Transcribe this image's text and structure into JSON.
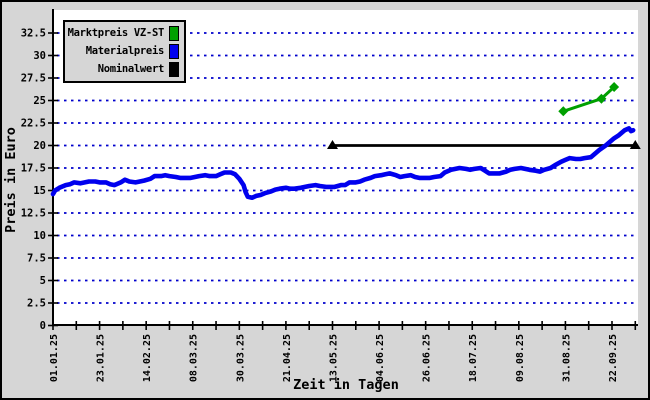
{
  "window": {
    "background": "#d6d6d6",
    "border_color": "#000000"
  },
  "chart_data": {
    "type": "line",
    "title": "",
    "xlabel": "Zeit in Tagen",
    "ylabel": "Preis in Euro",
    "plot_background": "#ffffff",
    "grid_color": "#0000cc",
    "axis_color": "#000000",
    "grid": "horizontal-dotted",
    "legend_position": "top-left",
    "ylim": [
      0,
      35
    ],
    "y_ticks": [
      {
        "v": 0,
        "label": "0"
      },
      {
        "v": 2.5,
        "label": "2.5"
      },
      {
        "v": 5,
        "label": "5"
      },
      {
        "v": 7.5,
        "label": "7.5"
      },
      {
        "v": 10,
        "label": "10"
      },
      {
        "v": 12.5,
        "label": "12.5"
      },
      {
        "v": 15,
        "label": "15"
      },
      {
        "v": 17.5,
        "label": "17.5"
      },
      {
        "v": 20,
        "label": "20"
      },
      {
        "v": 22.5,
        "label": "22.5"
      },
      {
        "v": 25,
        "label": "25"
      },
      {
        "v": 27.5,
        "label": "27.5"
      },
      {
        "v": 30,
        "label": "30"
      },
      {
        "v": 32.5,
        "label": "32.5"
      }
    ],
    "x_axis": {
      "unit": "days",
      "major_ticks": [
        {
          "day": 0,
          "label": "01.01.25"
        },
        {
          "day": 22,
          "label": "23.01.25"
        },
        {
          "day": 44,
          "label": "14.02.25"
        },
        {
          "day": 66,
          "label": "08.03.25"
        },
        {
          "day": 88,
          "label": "30.03.25"
        },
        {
          "day": 110,
          "label": "21.04.25"
        },
        {
          "day": 132,
          "label": "13.05.25"
        },
        {
          "day": 154,
          "label": "04.06.25"
        },
        {
          "day": 176,
          "label": "26.06.25"
        },
        {
          "day": 198,
          "label": "18.07.25"
        },
        {
          "day": 220,
          "label": "09.08.25"
        },
        {
          "day": 242,
          "label": "31.08.25"
        },
        {
          "day": 264,
          "label": "22.09.25"
        }
      ],
      "minor_tick_days": [
        11,
        33,
        55,
        77,
        99,
        121,
        143,
        165,
        187,
        209,
        231,
        253,
        275
      ]
    },
    "series": [
      {
        "name": "Marktpreis VZ-ST",
        "color": "#00a000",
        "marker": "diamond",
        "line_width": 3,
        "points": [
          [
            241,
            23.8
          ],
          [
            259,
            25.2
          ],
          [
            265,
            26.5
          ]
        ]
      },
      {
        "name": "Materialpreis",
        "color": "#0000ee",
        "marker": "none",
        "line_width": 4.6,
        "points": [
          [
            0,
            14.6
          ],
          [
            1,
            15.0
          ],
          [
            3,
            15.3
          ],
          [
            6,
            15.6
          ],
          [
            8,
            15.7
          ],
          [
            10,
            15.9
          ],
          [
            13,
            15.8
          ],
          [
            15,
            15.9
          ],
          [
            17,
            16.0
          ],
          [
            20,
            16.0
          ],
          [
            22,
            15.9
          ],
          [
            25,
            15.9
          ],
          [
            27,
            15.7
          ],
          [
            29,
            15.6
          ],
          [
            32,
            15.9
          ],
          [
            34,
            16.2
          ],
          [
            36,
            16.0
          ],
          [
            39,
            15.9
          ],
          [
            41,
            16.0
          ],
          [
            43,
            16.1
          ],
          [
            46,
            16.3
          ],
          [
            48,
            16.6
          ],
          [
            51,
            16.6
          ],
          [
            53,
            16.7
          ],
          [
            55,
            16.6
          ],
          [
            58,
            16.5
          ],
          [
            60,
            16.4
          ],
          [
            62,
            16.4
          ],
          [
            65,
            16.4
          ],
          [
            67,
            16.5
          ],
          [
            69,
            16.6
          ],
          [
            72,
            16.7
          ],
          [
            74,
            16.6
          ],
          [
            77,
            16.6
          ],
          [
            79,
            16.8
          ],
          [
            81,
            17.0
          ],
          [
            84,
            17.0
          ],
          [
            86,
            16.8
          ],
          [
            88,
            16.3
          ],
          [
            90,
            15.6
          ],
          [
            91,
            14.8
          ],
          [
            92,
            14.3
          ],
          [
            94,
            14.2
          ],
          [
            96,
            14.4
          ],
          [
            98,
            14.5
          ],
          [
            100,
            14.7
          ],
          [
            103,
            14.9
          ],
          [
            105,
            15.1
          ],
          [
            107,
            15.2
          ],
          [
            110,
            15.3
          ],
          [
            112,
            15.2
          ],
          [
            114,
            15.2
          ],
          [
            117,
            15.3
          ],
          [
            119,
            15.4
          ],
          [
            121,
            15.5
          ],
          [
            124,
            15.6
          ],
          [
            126,
            15.5
          ],
          [
            129,
            15.4
          ],
          [
            131,
            15.4
          ],
          [
            133,
            15.4
          ],
          [
            136,
            15.6
          ],
          [
            138,
            15.6
          ],
          [
            140,
            15.9
          ],
          [
            143,
            15.9
          ],
          [
            145,
            16.0
          ],
          [
            147,
            16.2
          ],
          [
            150,
            16.4
          ],
          [
            152,
            16.6
          ],
          [
            155,
            16.7
          ],
          [
            157,
            16.8
          ],
          [
            159,
            16.9
          ],
          [
            162,
            16.7
          ],
          [
            164,
            16.5
          ],
          [
            166,
            16.6
          ],
          [
            169,
            16.7
          ],
          [
            171,
            16.5
          ],
          [
            173,
            16.4
          ],
          [
            176,
            16.4
          ],
          [
            178,
            16.4
          ],
          [
            180,
            16.5
          ],
          [
            183,
            16.6
          ],
          [
            185,
            17.0
          ],
          [
            188,
            17.3
          ],
          [
            190,
            17.4
          ],
          [
            192,
            17.5
          ],
          [
            195,
            17.4
          ],
          [
            197,
            17.3
          ],
          [
            199,
            17.4
          ],
          [
            202,
            17.5
          ],
          [
            204,
            17.2
          ],
          [
            206,
            16.9
          ],
          [
            209,
            16.9
          ],
          [
            211,
            16.9
          ],
          [
            214,
            17.1
          ],
          [
            216,
            17.3
          ],
          [
            218,
            17.4
          ],
          [
            221,
            17.5
          ],
          [
            223,
            17.4
          ],
          [
            225,
            17.3
          ],
          [
            228,
            17.2
          ],
          [
            230,
            17.1
          ],
          [
            232,
            17.3
          ],
          [
            235,
            17.5
          ],
          [
            237,
            17.8
          ],
          [
            240,
            18.2
          ],
          [
            242,
            18.4
          ],
          [
            244,
            18.6
          ],
          [
            247,
            18.5
          ],
          [
            249,
            18.5
          ],
          [
            251,
            18.6
          ],
          [
            254,
            18.7
          ],
          [
            256,
            19.1
          ],
          [
            258,
            19.5
          ],
          [
            261,
            20.0
          ],
          [
            263,
            20.4
          ],
          [
            265,
            20.8
          ],
          [
            267,
            21.1
          ],
          [
            269,
            21.5
          ],
          [
            270,
            21.7
          ],
          [
            272,
            21.9
          ],
          [
            273,
            21.6
          ],
          [
            274,
            21.7
          ]
        ]
      },
      {
        "name": "Nominalwert",
        "color": "#000000",
        "marker": "triangle",
        "line_width": 2.8,
        "points": [
          [
            132,
            20
          ],
          [
            275,
            20
          ]
        ]
      }
    ]
  }
}
